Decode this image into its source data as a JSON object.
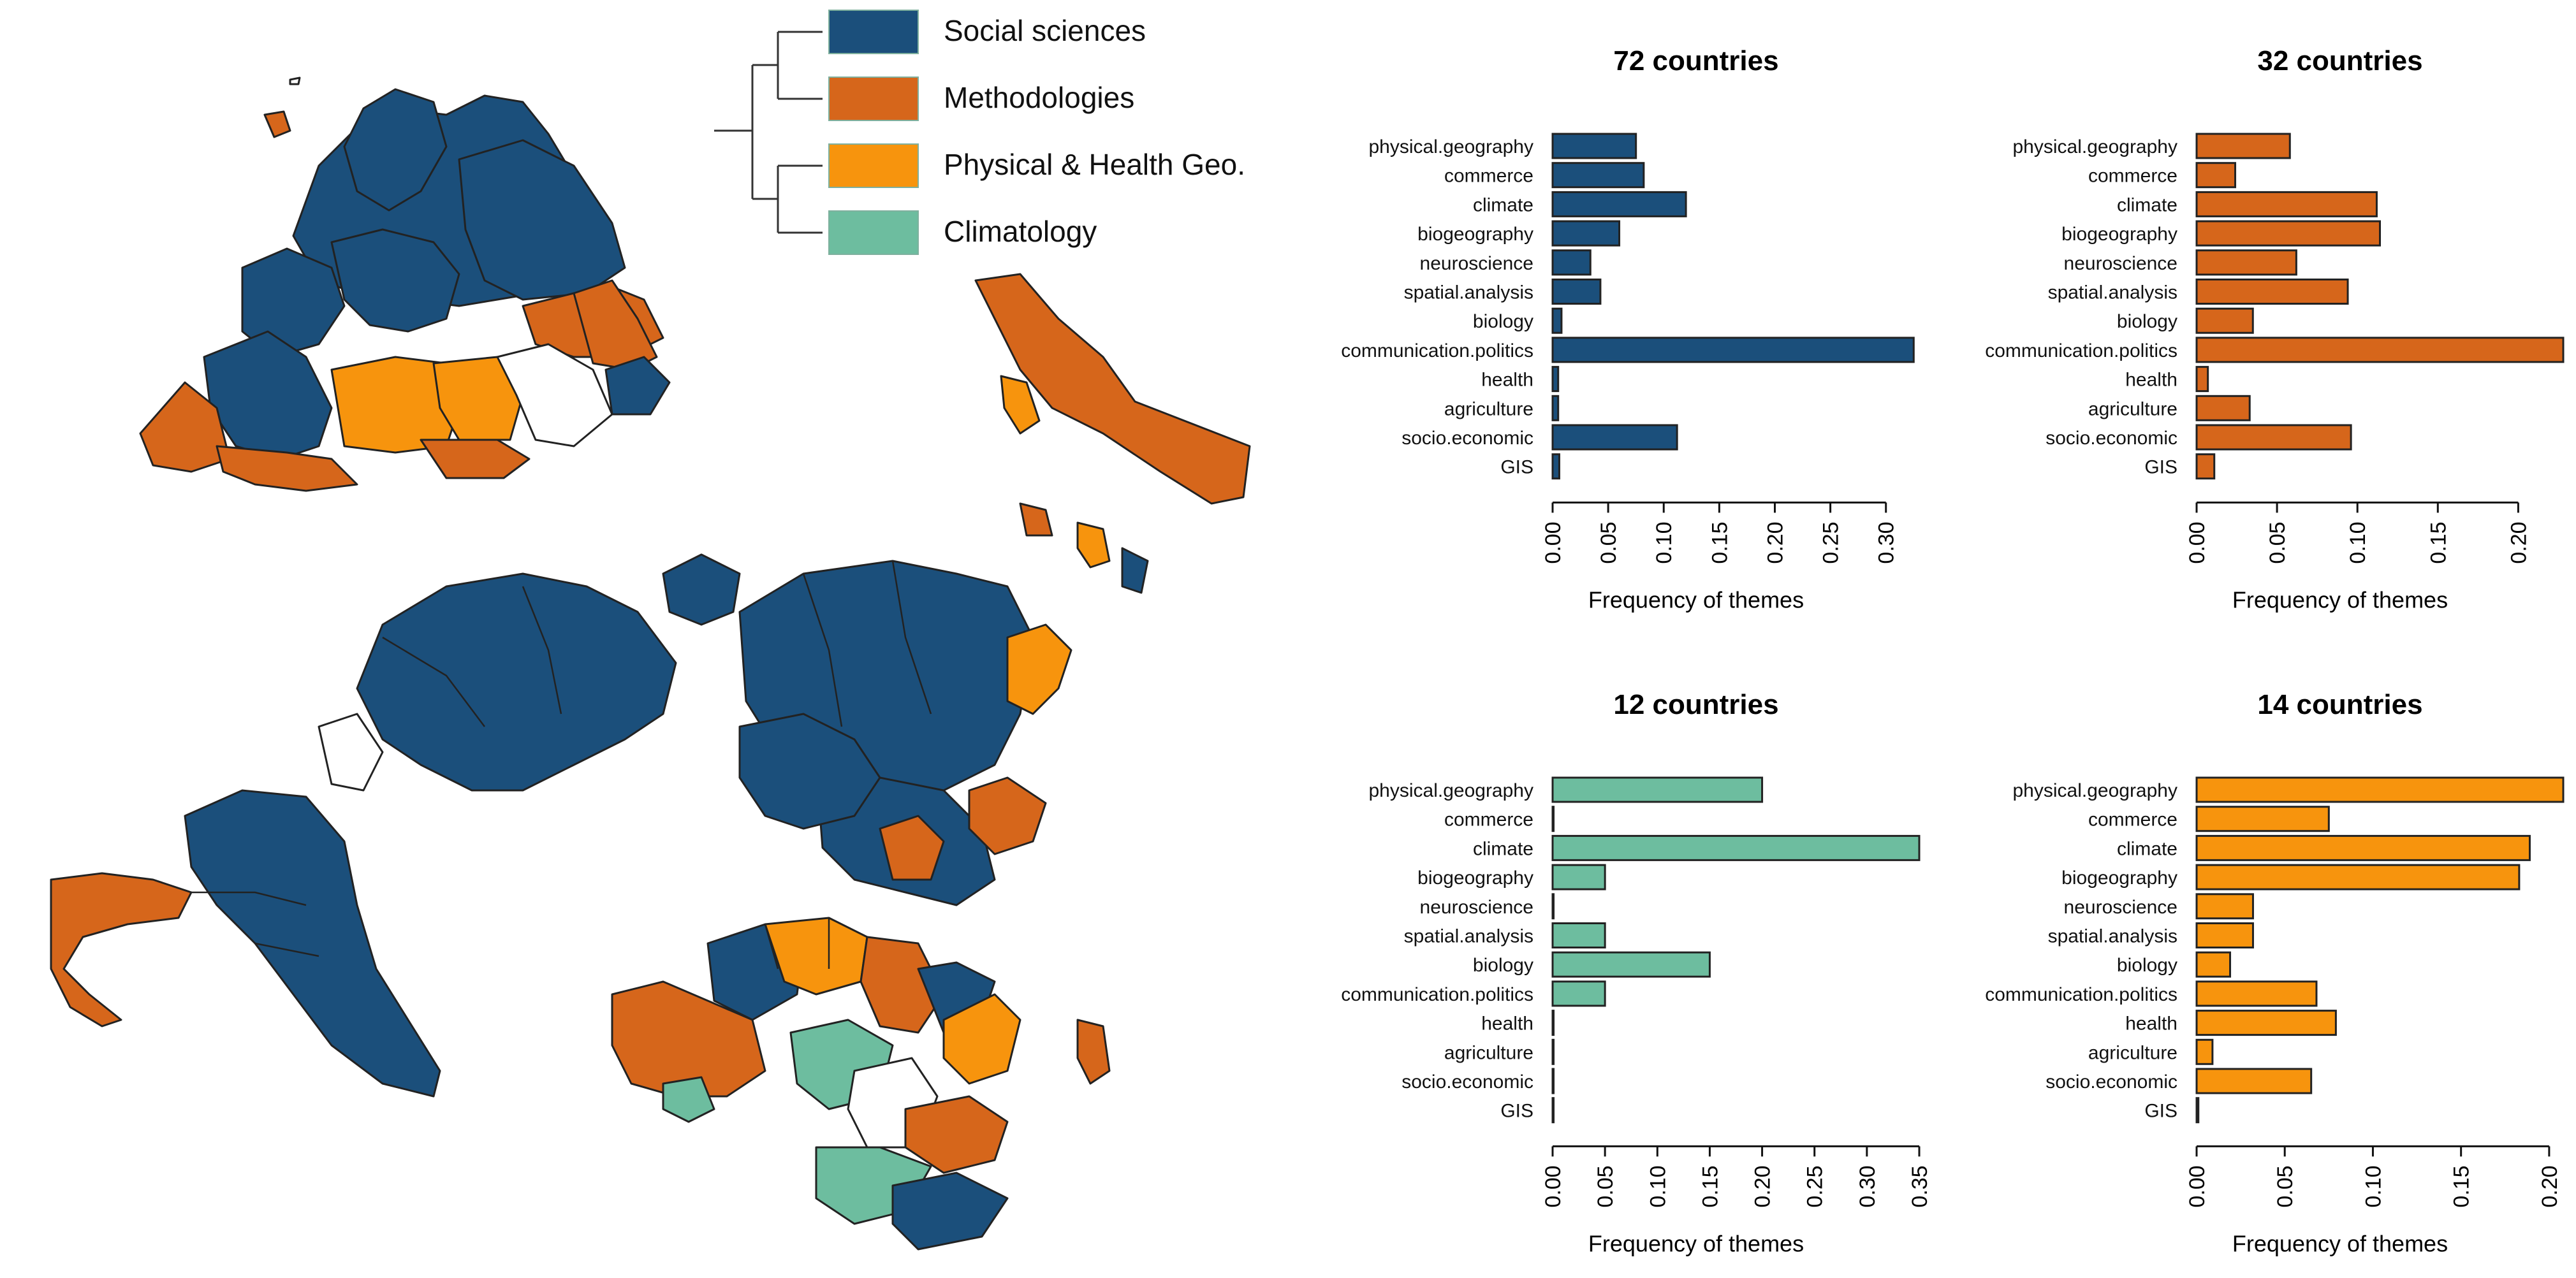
{
  "legend": {
    "items": [
      {
        "label": "Social sciences",
        "color": "#1b4f7b"
      },
      {
        "label": "Methodologies",
        "color": "#d6661b"
      },
      {
        "label": "Physical & Health Geo.",
        "color": "#f7940d"
      },
      {
        "label": "Climatology",
        "color": "#6dbd9f"
      }
    ]
  },
  "colors": {
    "social": "#1b4f7b",
    "methods": "#d6661b",
    "physical": "#f7940d",
    "climate": "#6dbd9f",
    "none": "#ffffff"
  },
  "chart_data": [
    {
      "type": "bar",
      "orientation": "horizontal",
      "title": "72 countries",
      "xlabel": "Frequency of themes",
      "color": "#1b4f7b",
      "categories": [
        "physical.geography",
        "commerce",
        "climate",
        "biogeography",
        "neuroscience",
        "spatial.analysis",
        "biology",
        "communication.politics",
        "health",
        "agriculture",
        "socio.economic",
        "GIS"
      ],
      "values": [
        0.075,
        0.082,
        0.12,
        0.06,
        0.034,
        0.043,
        0.008,
        0.325,
        0.005,
        0.005,
        0.112,
        0.006
      ],
      "xlim": [
        0,
        0.33
      ],
      "xticks": [
        0.0,
        0.05,
        0.1,
        0.15,
        0.2,
        0.25,
        0.3
      ],
      "xtick_labels": [
        "0.00",
        "0.05",
        "0.10",
        "0.15",
        "0.20",
        "0.25",
        "0.30"
      ]
    },
    {
      "type": "bar",
      "orientation": "horizontal",
      "title": "32 countries",
      "xlabel": "Frequency of themes",
      "color": "#d6661b",
      "categories": [
        "physical.geography",
        "commerce",
        "climate",
        "biogeography",
        "neuroscience",
        "spatial.analysis",
        "biology",
        "communication.politics",
        "health",
        "agriculture",
        "socio.economic",
        "GIS"
      ],
      "values": [
        0.058,
        0.024,
        0.112,
        0.114,
        0.062,
        0.094,
        0.035,
        0.228,
        0.007,
        0.033,
        0.096,
        0.011
      ],
      "xlim": [
        0,
        0.228
      ],
      "xticks": [
        0.0,
        0.05,
        0.1,
        0.15,
        0.2
      ],
      "xtick_labels": [
        "0.00",
        "0.05",
        "0.10",
        "0.15",
        "0.20"
      ]
    },
    {
      "type": "bar",
      "orientation": "horizontal",
      "title": "12 countries",
      "xlabel": "Frequency of themes",
      "color": "#6dbd9f",
      "categories": [
        "physical.geography",
        "commerce",
        "climate",
        "biogeography",
        "neuroscience",
        "spatial.analysis",
        "biology",
        "communication.politics",
        "health",
        "agriculture",
        "socio.economic",
        "GIS"
      ],
      "values": [
        0.2,
        0.0,
        0.35,
        0.05,
        0.0,
        0.05,
        0.15,
        0.05,
        0.0,
        0.0,
        0.0,
        0.0
      ],
      "xlim": [
        0,
        0.35
      ],
      "xticks": [
        0.0,
        0.05,
        0.1,
        0.15,
        0.2,
        0.25,
        0.3,
        0.35
      ],
      "xtick_labels": [
        "0.00",
        "0.05",
        "0.10",
        "0.15",
        "0.20",
        "0.25",
        "0.30",
        "0.35"
      ]
    },
    {
      "type": "bar",
      "orientation": "horizontal",
      "title": "14 countries",
      "xlabel": "Frequency of themes",
      "color": "#f7940d",
      "categories": [
        "physical.geography",
        "commerce",
        "climate",
        "biogeography",
        "neuroscience",
        "spatial.analysis",
        "biology",
        "communication.politics",
        "health",
        "agriculture",
        "socio.economic",
        "GIS"
      ],
      "values": [
        0.208,
        0.075,
        0.189,
        0.183,
        0.032,
        0.032,
        0.019,
        0.068,
        0.079,
        0.009,
        0.065,
        0.001
      ],
      "xlim": [
        0,
        0.208
      ],
      "xticks": [
        0.0,
        0.05,
        0.1,
        0.15,
        0.2
      ],
      "xtick_labels": [
        "0.00",
        "0.05",
        "0.10",
        "0.15",
        "0.20"
      ]
    }
  ]
}
